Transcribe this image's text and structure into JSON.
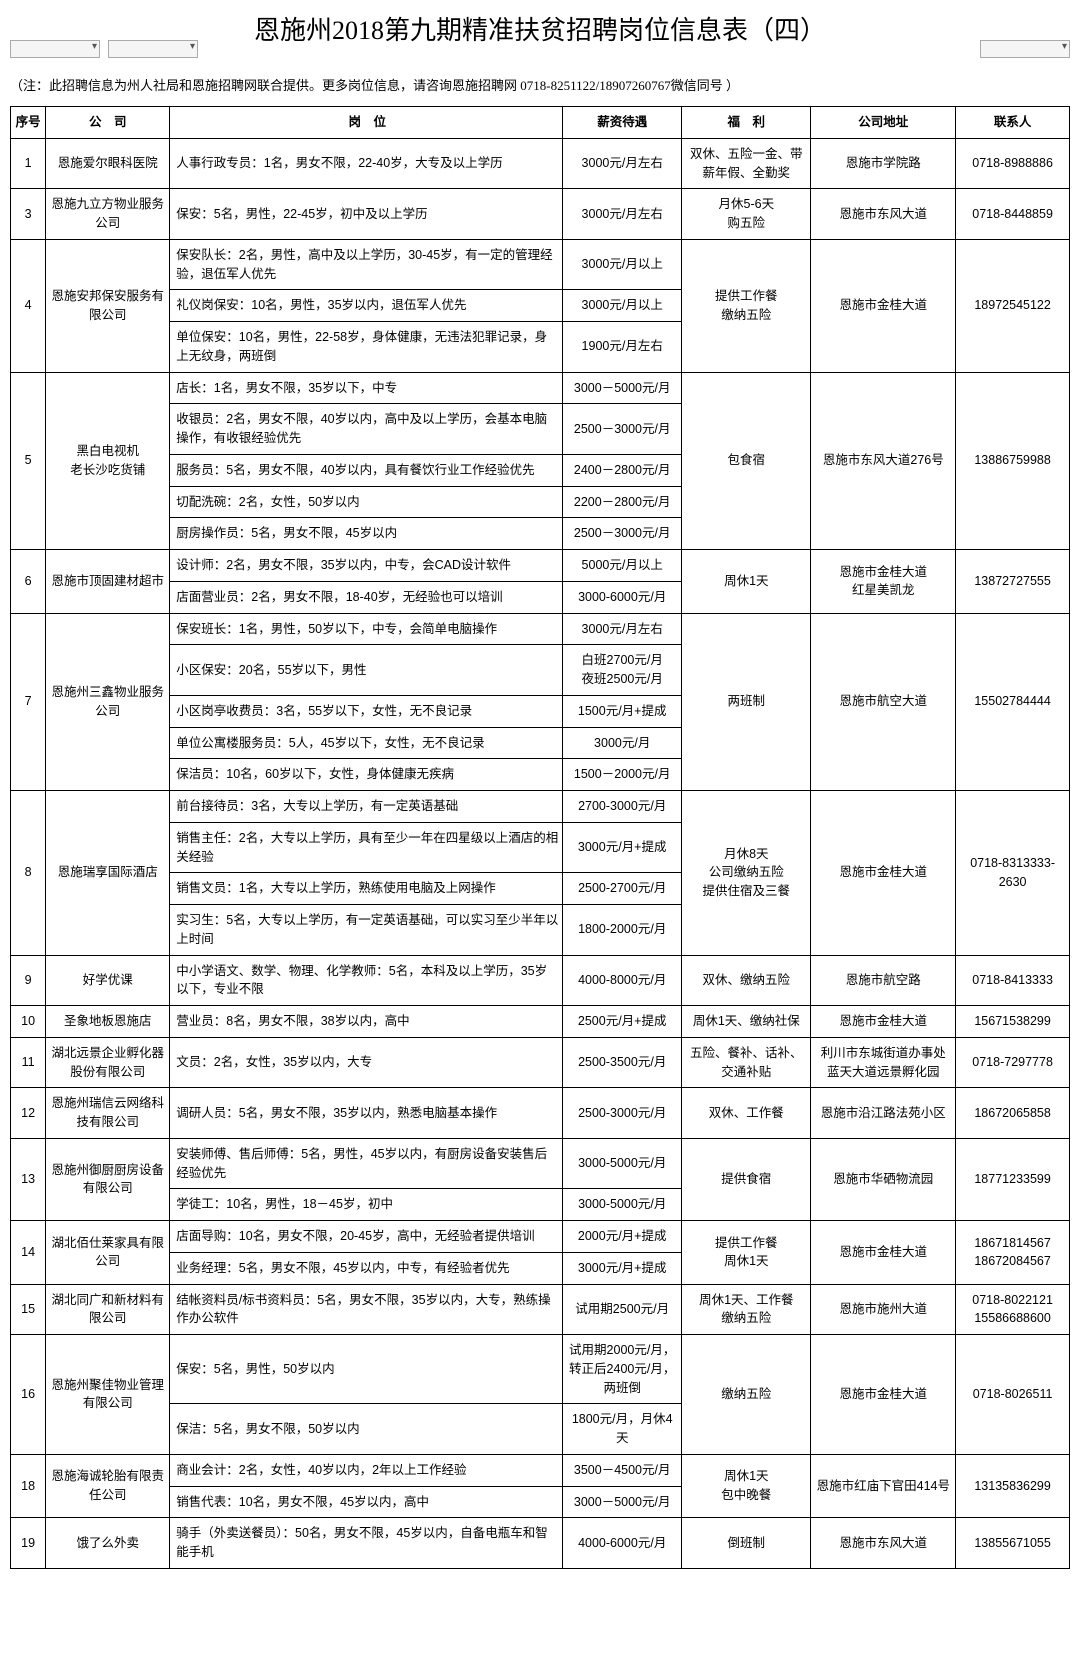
{
  "title": "恩施州2018第九期精准扶贫招聘岗位信息表（四）",
  "note": "（注：此招聘信息为州人社局和恩施招聘网联合提供。更多岗位信息，请咨询恩施招聘网 0718-8251122/18907260767微信同号 ）",
  "headers": {
    "seq": "序号",
    "company": "公　司",
    "position": "岗　位",
    "salary": "薪资待遇",
    "welfare": "福　利",
    "address": "公司地址",
    "contact": "联系人"
  },
  "rows": [
    {
      "seq": "1",
      "company": "恩施爱尔眼科医院",
      "positions": [
        {
          "pos": "人事行政专员：1名，男女不限，22-40岁，大专及以上学历",
          "sal": "3000元/月左右"
        }
      ],
      "welfare": "双休、五险一金、带薪年假、全勤奖",
      "address": "恩施市学院路",
      "contact": "0718-8988886"
    },
    {
      "seq": "3",
      "company": "恩施九立方物业服务公司",
      "positions": [
        {
          "pos": "保安：5名，男性，22-45岁，初中及以上学历",
          "sal": "3000元/月左右"
        }
      ],
      "welfare": "月休5-6天\n购五险",
      "address": "恩施市东风大道",
      "contact": "0718-8448859"
    },
    {
      "seq": "4",
      "company": "恩施安邦保安服务有限公司",
      "positions": [
        {
          "pos": "保安队长：2名，男性，高中及以上学历，30-45岁，有一定的管理经验，退伍军人优先",
          "sal": "3000元/月以上"
        },
        {
          "pos": "礼仪岗保安：10名，男性，35岁以内，退伍军人优先",
          "sal": "3000元/月以上"
        },
        {
          "pos": "单位保安：10名，男性，22-58岁，身体健康，无违法犯罪记录，身上无纹身，两班倒",
          "sal": "1900元/月左右"
        }
      ],
      "welfare": "提供工作餐\n缴纳五险",
      "address": "恩施市金桂大道",
      "contact": "18972545122"
    },
    {
      "seq": "5",
      "company": "黑白电视机\n老长沙吃货铺",
      "positions": [
        {
          "pos": "店长：1名，男女不限，35岁以下，中专",
          "sal": "3000－5000元/月"
        },
        {
          "pos": "收银员：2名，男女不限，40岁以内，高中及以上学历，会基本电脑操作，有收银经验优先",
          "sal": "2500－3000元/月"
        },
        {
          "pos": "服务员：5名，男女不限，40岁以内，具有餐饮行业工作经验优先",
          "sal": "2400－2800元/月"
        },
        {
          "pos": "切配洗碗：2名，女性，50岁以内",
          "sal": "2200－2800元/月"
        },
        {
          "pos": "厨房操作员：5名，男女不限，45岁以内",
          "sal": "2500－3000元/月"
        }
      ],
      "welfare": "包食宿",
      "address": "恩施市东风大道276号",
      "contact": "13886759988"
    },
    {
      "seq": "6",
      "company": "恩施市顶固建材超市",
      "positions": [
        {
          "pos": "设计师：2名，男女不限，35岁以内，中专，会CAD设计软件",
          "sal": "5000元/月以上"
        },
        {
          "pos": "店面营业员：2名，男女不限，18-40岁，无经验也可以培训",
          "sal": "3000-6000元/月"
        }
      ],
      "welfare": "周休1天",
      "address": "恩施市金桂大道\n红星美凯龙",
      "contact": "13872727555"
    },
    {
      "seq": "7",
      "company": "恩施州三鑫物业服务公司",
      "positions": [
        {
          "pos": "保安班长：1名，男性，50岁以下，中专，会简单电脑操作",
          "sal": "3000元/月左右"
        },
        {
          "pos": "小区保安：20名，55岁以下，男性",
          "sal": "白班2700元/月\n夜班2500元/月"
        },
        {
          "pos": "小区岗亭收费员：3名，55岁以下，女性，无不良记录",
          "sal": "1500元/月+提成"
        },
        {
          "pos": "单位公寓楼服务员：5人，45岁以下，女性，无不良记录",
          "sal": "3000元/月"
        },
        {
          "pos": "保洁员：10名，60岁以下，女性，身体健康无疾病",
          "sal": "1500－2000元/月"
        }
      ],
      "welfare": "两班制",
      "address": "恩施市航空大道",
      "contact": "15502784444"
    },
    {
      "seq": "8",
      "company": "恩施瑞享国际酒店",
      "positions": [
        {
          "pos": "前台接待员：3名，大专以上学历，有一定英语基础",
          "sal": "2700-3000元/月"
        },
        {
          "pos": "销售主任：2名，大专以上学历，具有至少一年在四星级以上酒店的相关经验",
          "sal": "3000元/月+提成"
        },
        {
          "pos": "销售文员：1名，大专以上学历，熟练使用电脑及上网操作",
          "sal": "2500-2700元/月"
        },
        {
          "pos": "实习生：5名，大专以上学历，有一定英语基础，可以实习至少半年以上时间",
          "sal": "1800-2000元/月"
        }
      ],
      "welfare": "月休8天\n公司缴纳五险\n提供住宿及三餐",
      "address": "恩施市金桂大道",
      "contact": "0718-8313333-2630"
    },
    {
      "seq": "9",
      "company": "好学优课",
      "positions": [
        {
          "pos": "中小学语文、数学、物理、化学教师：5名，本科及以上学历，35岁以下，专业不限",
          "sal": "4000-8000元/月"
        }
      ],
      "welfare": "双休、缴纳五险",
      "address": "恩施市航空路",
      "contact": "0718-8413333"
    },
    {
      "seq": "10",
      "company": "圣象地板恩施店",
      "positions": [
        {
          "pos": "营业员：8名，男女不限，38岁以内，高中",
          "sal": "2500元/月+提成"
        }
      ],
      "welfare": "周休1天、缴纳社保",
      "address": "恩施市金桂大道",
      "contact": "15671538299"
    },
    {
      "seq": "11",
      "company": "湖北远景企业孵化器\n股份有限公司",
      "positions": [
        {
          "pos": "文员：2名，女性，35岁以内，大专",
          "sal": "2500-3500元/月"
        }
      ],
      "welfare": "五险、餐补、话补、交通补贴",
      "address": "利川市东城街道办事处蓝天大道远景孵化园",
      "contact": "0718-7297778"
    },
    {
      "seq": "12",
      "company": "恩施州瑞信云网络科技有限公司",
      "positions": [
        {
          "pos": "调研人员：5名，男女不限，35岁以内，熟悉电脑基本操作",
          "sal": "2500-3000元/月"
        }
      ],
      "welfare": "双休、工作餐",
      "address": "恩施市沿江路法苑小区",
      "contact": "18672065858"
    },
    {
      "seq": "13",
      "company": "恩施州御厨厨房设备有限公司",
      "positions": [
        {
          "pos": "安装师傅、售后师傅：5名，男性，45岁以内，有厨房设备安装售后经验优先",
          "sal": "3000-5000元/月"
        },
        {
          "pos": "学徒工：10名，男性，18－45岁，初中",
          "sal": "3000-5000元/月"
        }
      ],
      "welfare": "提供食宿",
      "address": "恩施市华硒物流园",
      "contact": "18771233599"
    },
    {
      "seq": "14",
      "company": "湖北佰仕莱家具有限公司",
      "positions": [
        {
          "pos": "店面导购：10名，男女不限，20-45岁，高中，无经验者提供培训",
          "sal": "2000元/月+提成"
        },
        {
          "pos": "业务经理：5名，男女不限，45岁以内，中专，有经验者优先",
          "sal": "3000元/月+提成"
        }
      ],
      "welfare": "提供工作餐\n周休1天",
      "address": "恩施市金桂大道",
      "contact": "18671814567\n18672084567"
    },
    {
      "seq": "15",
      "company": "湖北同广和新材料有限公司",
      "positions": [
        {
          "pos": "结帐资料员/标书资料员：5名，男女不限，35岁以内，大专，熟练操作办公软件",
          "sal": "试用期2500元/月"
        }
      ],
      "welfare": "周休1天、工作餐\n缴纳五险",
      "address": "恩施市施州大道",
      "contact": "0718-8022121\n15586688600"
    },
    {
      "seq": "16",
      "company": "恩施州聚佳物业管理有限公司",
      "positions": [
        {
          "pos": "保安：5名，男性，50岁以内",
          "sal": "试用期2000元/月，转正后2400元/月，两班倒"
        },
        {
          "pos": "保洁：5名，男女不限，50岁以内",
          "sal": "1800元/月，月休4天"
        }
      ],
      "welfare": "缴纳五险",
      "address": "恩施市金桂大道",
      "contact": "0718-8026511"
    },
    {
      "seq": "18",
      "company": "恩施海诚轮胎有限责任公司",
      "positions": [
        {
          "pos": "商业会计：2名，女性，40岁以内，2年以上工作经验",
          "sal": "3500－4500元/月"
        },
        {
          "pos": "销售代表：10名，男女不限，45岁以内，高中",
          "sal": "3000－5000元/月"
        }
      ],
      "welfare": "周休1天\n包中晚餐",
      "address": "恩施市红庙下官田414号",
      "contact": "13135836299"
    },
    {
      "seq": "19",
      "company": "饿了么外卖",
      "positions": [
        {
          "pos": "骑手（外卖送餐员）：50名，男女不限，45岁以内，自备电瓶车和智能手机",
          "sal": "4000-6000元/月"
        }
      ],
      "welfare": "倒班制",
      "address": "恩施市东风大道",
      "contact": "13855671055"
    }
  ]
}
